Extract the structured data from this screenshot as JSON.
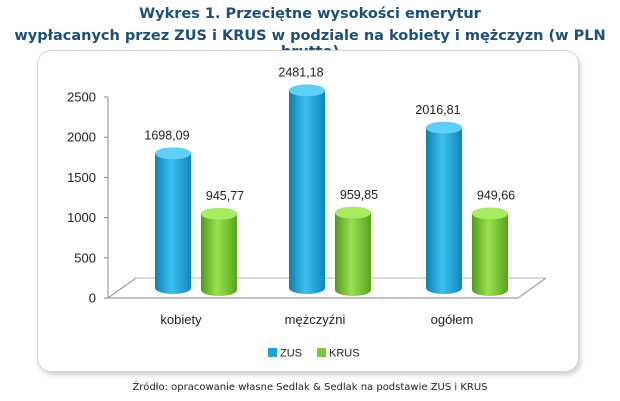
{
  "chart_data": {
    "type": "bar",
    "title_line1": "Wykres 1. Przeciętne wysokości emerytur",
    "title_line2": "wypłacanych przez ZUS i KRUS w podziale na kobiety i mężczyzn (w PLN brutto)",
    "categories": [
      "kobiety",
      "mężczyźni",
      "ogółem"
    ],
    "series": [
      {
        "name": "ZUS",
        "color": "#1fa3d8",
        "values": [
          1698.09,
          2481.18,
          2016.81
        ],
        "labels": [
          "1698,09",
          "2481,18",
          "2016,81"
        ]
      },
      {
        "name": "KRUS",
        "color": "#7dc832",
        "values": [
          945.77,
          959.85,
          949.66
        ],
        "labels": [
          "945,77",
          "959,85",
          "949,66"
        ]
      }
    ],
    "yticks": [
      "0",
      "500",
      "1000",
      "1500",
      "2000",
      "2500"
    ],
    "ylim": [
      0,
      2500
    ],
    "grid": false,
    "legend_position": "bottom"
  },
  "source_note": "Źródło: opracowanie własne Sedlak & Sedlak na podstawie ZUS i KRUS"
}
